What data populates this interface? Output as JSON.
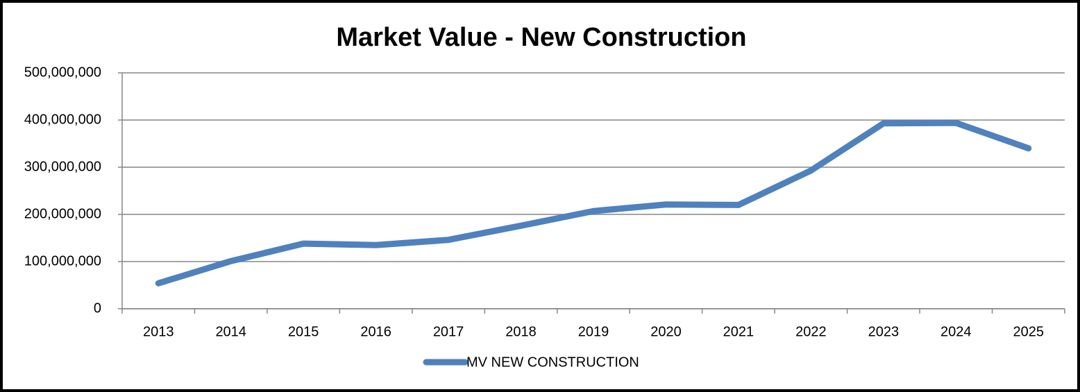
{
  "chart_data": {
    "type": "line",
    "title": "Market Value - New Construction",
    "categories": [
      "2013",
      "2014",
      "2015",
      "2016",
      "2017",
      "2018",
      "2019",
      "2020",
      "2021",
      "2022",
      "2023",
      "2024",
      "2025"
    ],
    "series": [
      {
        "name": "MV NEW CONSTRUCTION",
        "color": "#4f81bd",
        "values": [
          54000000,
          101000000,
          138000000,
          135000000,
          146000000,
          176000000,
          207000000,
          221000000,
          220000000,
          293000000,
          393000000,
          394000000,
          340000000
        ]
      }
    ],
    "ylim": [
      0,
      500000000
    ],
    "yticks": [
      0,
      {
        "value": 100000000,
        "label": "100,000,000"
      },
      {
        "value": 200000000,
        "label": "200,000,000"
      },
      {
        "value": 300000000,
        "label": "300,000,000"
      },
      {
        "value": 400000000,
        "label": "400,000,000"
      },
      {
        "value": 500000000,
        "label": "500,000,000"
      }
    ],
    "grid": true,
    "legend": "bottom"
  }
}
